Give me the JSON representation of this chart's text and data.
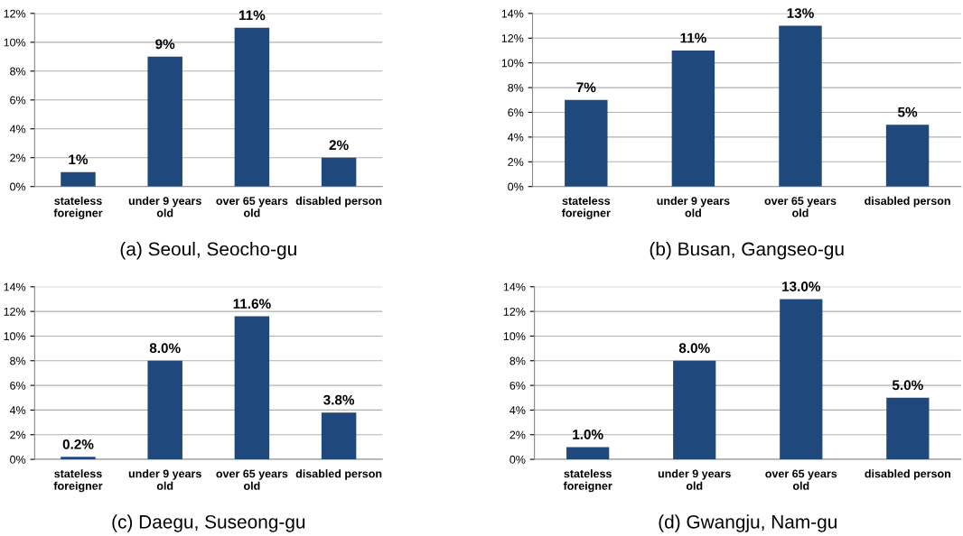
{
  "chart_data": [
    {
      "type": "bar",
      "xlabel": "(a) Seoul, Seocho-gu",
      "categories": [
        "stateless\nforeigner",
        "under 9 years\nold",
        "over 65 years\nold",
        "disabled person"
      ],
      "values": [
        1,
        9,
        11,
        2
      ],
      "value_labels": [
        "1%",
        "9%",
        "11%",
        "2%"
      ],
      "color": "#1f497d",
      "ylim": [
        0,
        12
      ],
      "yticks": [
        {
          "value": 0,
          "label": "0%"
        },
        {
          "value": 2,
          "label": "2%"
        },
        {
          "value": 4,
          "label": "4%"
        },
        {
          "value": 6,
          "label": "6%"
        },
        {
          "value": 8,
          "label": "8%"
        },
        {
          "value": 10,
          "label": "10%"
        },
        {
          "value": 12,
          "label": "12%"
        }
      ],
      "grid": "y"
    },
    {
      "type": "bar",
      "xlabel": "(b) Busan, Gangseo-gu",
      "categories": [
        "stateless\nforeigner",
        "under 9 years\nold",
        "over 65 years\nold",
        "disabled person"
      ],
      "values": [
        7,
        11,
        13,
        5
      ],
      "value_labels": [
        "7%",
        "11%",
        "13%",
        "5%"
      ],
      "color": "#1f497d",
      "ylim": [
        0,
        14
      ],
      "yticks": [
        {
          "value": 0,
          "label": "0%"
        },
        {
          "value": 2,
          "label": "2%"
        },
        {
          "value": 4,
          "label": "4%"
        },
        {
          "value": 6,
          "label": "6%"
        },
        {
          "value": 8,
          "label": "8%"
        },
        {
          "value": 10,
          "label": "10%"
        },
        {
          "value": 12,
          "label": "12%"
        },
        {
          "value": 14,
          "label": "14%"
        }
      ],
      "grid": "y"
    },
    {
      "type": "bar",
      "xlabel": "(c) Daegu, Suseong-gu",
      "categories": [
        "stateless\nforeigner",
        "under 9 years\nold",
        "over 65 years\nold",
        "disabled person"
      ],
      "values": [
        0.2,
        8.0,
        11.6,
        3.8
      ],
      "value_labels": [
        "0.2%",
        "8.0%",
        "11.6%",
        "3.8%"
      ],
      "color": "#1f497d",
      "ylim": [
        0,
        14
      ],
      "yticks": [
        {
          "value": 0,
          "label": "0%"
        },
        {
          "value": 2,
          "label": "2%"
        },
        {
          "value": 4,
          "label": "4%"
        },
        {
          "value": 6,
          "label": "6%"
        },
        {
          "value": 8,
          "label": "8%"
        },
        {
          "value": 10,
          "label": "10%"
        },
        {
          "value": 12,
          "label": "12%"
        },
        {
          "value": 14,
          "label": "14%"
        }
      ],
      "grid": "y"
    },
    {
      "type": "bar",
      "xlabel": "(d) Gwangju, Nam-gu",
      "categories": [
        "stateless\nforeigner",
        "under 9 years\nold",
        "over 65 years\nold",
        "disabled person"
      ],
      "values": [
        1.0,
        8.0,
        13.0,
        5.0
      ],
      "value_labels": [
        "1.0%",
        "8.0%",
        "13.0%",
        "5.0%"
      ],
      "color": "#1f497d",
      "ylim": [
        0,
        14
      ],
      "yticks": [
        {
          "value": 0,
          "label": "0%"
        },
        {
          "value": 2,
          "label": "2%"
        },
        {
          "value": 4,
          "label": "4%"
        },
        {
          "value": 6,
          "label": "6%"
        },
        {
          "value": 8,
          "label": "8%"
        },
        {
          "value": 10,
          "label": "10%"
        },
        {
          "value": 12,
          "label": "12%"
        },
        {
          "value": 14,
          "label": "14%"
        }
      ],
      "grid": "y"
    }
  ]
}
